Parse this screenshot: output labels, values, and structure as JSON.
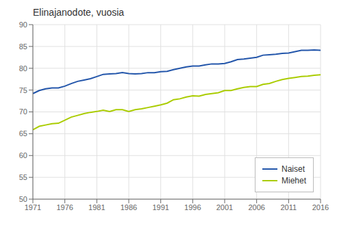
{
  "chart_data": {
    "type": "line",
    "title": "Elinajanodote, vuosia",
    "x": [
      1971,
      1972,
      1973,
      1974,
      1975,
      1976,
      1977,
      1978,
      1979,
      1980,
      1981,
      1982,
      1983,
      1984,
      1985,
      1986,
      1987,
      1988,
      1989,
      1990,
      1991,
      1992,
      1993,
      1994,
      1995,
      1996,
      1997,
      1998,
      1999,
      2000,
      2001,
      2002,
      2003,
      2004,
      2005,
      2006,
      2007,
      2008,
      2009,
      2010,
      2011,
      2012,
      2013,
      2014,
      2015,
      2016
    ],
    "series": [
      {
        "name": "Naiset",
        "color": "#2255aa",
        "values": [
          74.2,
          74.9,
          75.3,
          75.5,
          75.5,
          75.9,
          76.5,
          77.0,
          77.3,
          77.6,
          78.1,
          78.6,
          78.7,
          78.8,
          79.0,
          78.8,
          78.7,
          78.8,
          79.0,
          79.0,
          79.2,
          79.3,
          79.7,
          80.0,
          80.3,
          80.5,
          80.5,
          80.8,
          81.0,
          81.0,
          81.1,
          81.5,
          82.0,
          82.1,
          82.3,
          82.5,
          83.0,
          83.1,
          83.2,
          83.4,
          83.5,
          83.8,
          84.1,
          84.1,
          84.2,
          84.1
        ]
      },
      {
        "name": "Miehet",
        "color": "#aacc00",
        "values": [
          65.9,
          66.7,
          67.0,
          67.3,
          67.4,
          68.1,
          68.8,
          69.2,
          69.6,
          69.9,
          70.1,
          70.4,
          70.1,
          70.5,
          70.5,
          70.1,
          70.5,
          70.7,
          71.0,
          71.3,
          71.6,
          72.0,
          72.8,
          73.0,
          73.4,
          73.7,
          73.6,
          74.0,
          74.2,
          74.4,
          74.9,
          74.9,
          75.3,
          75.6,
          75.8,
          75.8,
          76.3,
          76.5,
          77.0,
          77.4,
          77.7,
          77.9,
          78.1,
          78.2,
          78.4,
          78.5
        ]
      }
    ],
    "xlim": [
      1971,
      2016
    ],
    "ylim": [
      50,
      90
    ],
    "xticks": [
      1971,
      1976,
      1981,
      1986,
      1991,
      1996,
      2001,
      2006,
      2011,
      2016
    ],
    "yticks": [
      50,
      55,
      60,
      65,
      70,
      75,
      80,
      85,
      90
    ],
    "grid": true,
    "legend": "lower right"
  }
}
